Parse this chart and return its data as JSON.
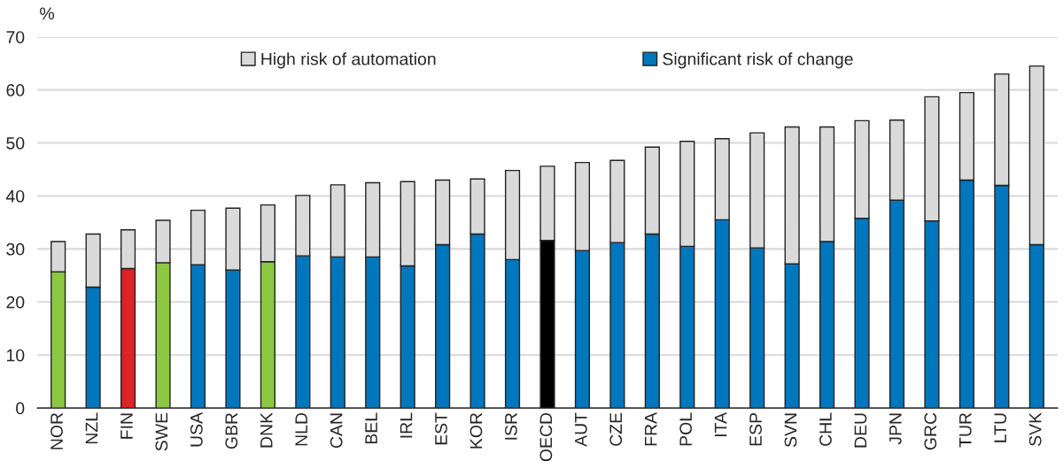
{
  "chart_data": {
    "type": "bar",
    "stacked": true,
    "ylabel": "%",
    "categories": [
      "NOR",
      "NZL",
      "FIN",
      "SWE",
      "USA",
      "GBR",
      "DNK",
      "NLD",
      "CAN",
      "BEL",
      "IRL",
      "EST",
      "KOR",
      "ISR",
      "OECD",
      "AUT",
      "CZE",
      "FRA",
      "POL",
      "ITA",
      "ESP",
      "SVN",
      "CHL",
      "DEU",
      "JPN",
      "GRC",
      "TUR",
      "LTU",
      "SVK"
    ],
    "series": [
      {
        "name": "Significant risk of change",
        "color": "#0077bd",
        "colors": [
          "#8cc841",
          "#0077bd",
          "#dc2327",
          "#8cc841",
          "#0077bd",
          "#0077bd",
          "#8cc841",
          "#0077bd",
          "#0077bd",
          "#0077bd",
          "#0077bd",
          "#0077bd",
          "#0077bd",
          "#0077bd",
          "#000000",
          "#0077bd",
          "#0077bd",
          "#0077bd",
          "#0077bd",
          "#0077bd",
          "#0077bd",
          "#0077bd",
          "#0077bd",
          "#0077bd",
          "#0077bd",
          "#0077bd",
          "#0077bd",
          "#0077bd",
          "#0077bd"
        ],
        "values": [
          25.7,
          22.8,
          26.3,
          27.4,
          27.0,
          26.0,
          27.6,
          28.7,
          28.5,
          28.5,
          26.8,
          30.8,
          32.8,
          28.0,
          31.6,
          29.7,
          31.2,
          32.8,
          30.5,
          35.5,
          30.2,
          27.2,
          31.4,
          35.8,
          39.2,
          35.3,
          43.0,
          42.0,
          30.8
        ]
      },
      {
        "name": "High risk of automation",
        "color": "#dadada",
        "values": [
          5.7,
          10.0,
          7.3,
          8.0,
          10.3,
          11.7,
          10.7,
          11.4,
          13.6,
          14.0,
          15.9,
          12.2,
          10.4,
          16.8,
          14.0,
          16.6,
          15.5,
          16.4,
          19.8,
          15.3,
          21.7,
          25.8,
          21.6,
          18.4,
          15.1,
          23.4,
          16.5,
          21.0,
          33.7
        ]
      }
    ],
    "ylim": [
      0,
      70
    ],
    "yticks": [
      0,
      10,
      20,
      30,
      40,
      50,
      60,
      70
    ],
    "grid": "y",
    "legend": "top"
  }
}
